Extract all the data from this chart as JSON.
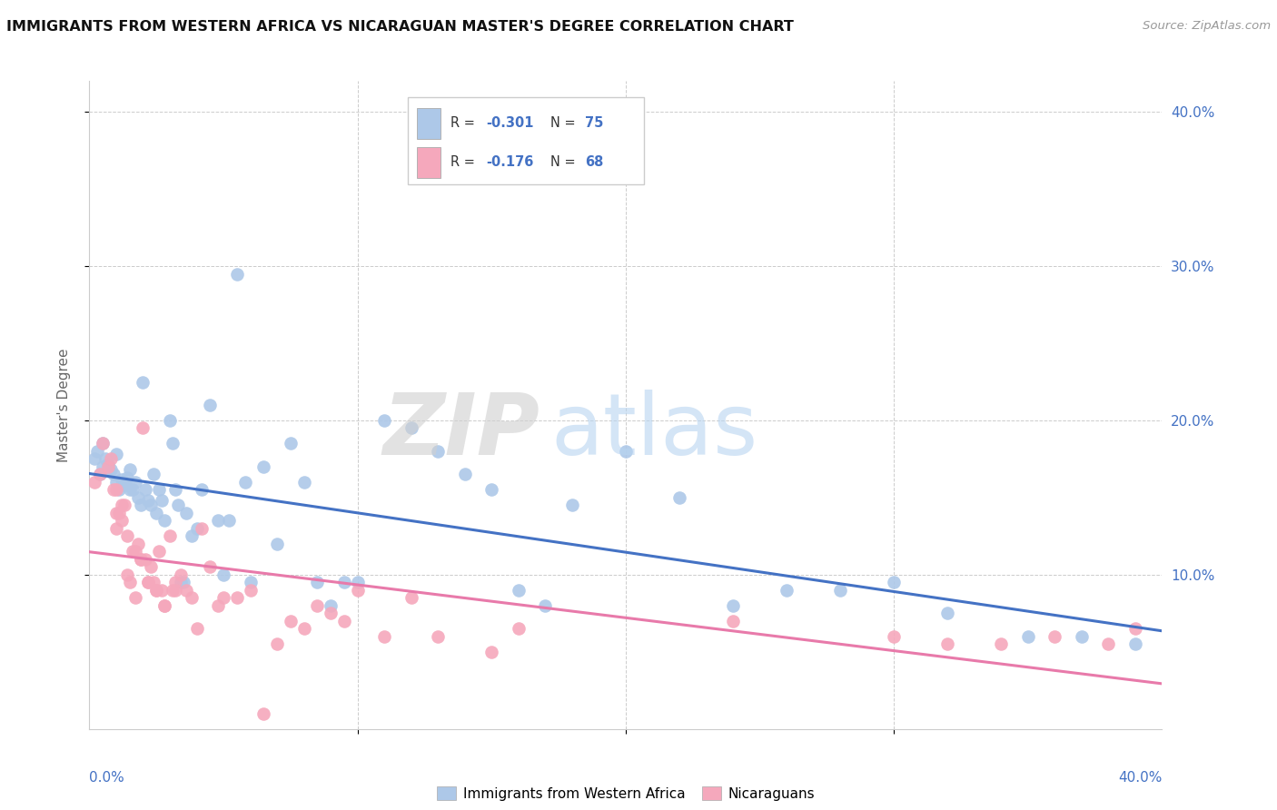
{
  "title": "IMMIGRANTS FROM WESTERN AFRICA VS NICARAGUAN MASTER'S DEGREE CORRELATION CHART",
  "source": "Source: ZipAtlas.com",
  "ylabel": "Master's Degree",
  "legend_label1": "Immigrants from Western Africa",
  "legend_label2": "Nicaraguans",
  "color_blue": "#adc8e8",
  "color_pink": "#f5a8bc",
  "line_color_blue": "#4472C4",
  "line_color_pink": "#e87aaa",
  "xlim": [
    0.0,
    0.4
  ],
  "ylim": [
    0.0,
    0.42
  ],
  "ytick_vals": [
    0.1,
    0.2,
    0.3,
    0.4
  ],
  "xtick_vals": [
    0.1,
    0.2,
    0.3
  ],
  "blue_x": [
    0.002,
    0.003,
    0.004,
    0.005,
    0.005,
    0.006,
    0.007,
    0.008,
    0.009,
    0.01,
    0.01,
    0.011,
    0.012,
    0.013,
    0.014,
    0.015,
    0.015,
    0.016,
    0.017,
    0.018,
    0.019,
    0.02,
    0.021,
    0.022,
    0.023,
    0.024,
    0.025,
    0.026,
    0.027,
    0.028,
    0.03,
    0.031,
    0.032,
    0.033,
    0.034,
    0.035,
    0.036,
    0.038,
    0.04,
    0.042,
    0.045,
    0.048,
    0.05,
    0.052,
    0.055,
    0.058,
    0.06,
    0.065,
    0.07,
    0.075,
    0.08,
    0.085,
    0.09,
    0.095,
    0.1,
    0.11,
    0.12,
    0.13,
    0.14,
    0.15,
    0.16,
    0.17,
    0.18,
    0.2,
    0.22,
    0.24,
    0.26,
    0.28,
    0.3,
    0.32,
    0.35,
    0.37,
    0.39
  ],
  "blue_y": [
    0.175,
    0.18,
    0.165,
    0.185,
    0.17,
    0.175,
    0.172,
    0.168,
    0.165,
    0.16,
    0.178,
    0.155,
    0.162,
    0.158,
    0.163,
    0.155,
    0.168,
    0.155,
    0.16,
    0.15,
    0.145,
    0.225,
    0.155,
    0.148,
    0.145,
    0.165,
    0.14,
    0.155,
    0.148,
    0.135,
    0.2,
    0.185,
    0.155,
    0.145,
    0.095,
    0.095,
    0.14,
    0.125,
    0.13,
    0.155,
    0.21,
    0.135,
    0.1,
    0.135,
    0.295,
    0.16,
    0.095,
    0.17,
    0.12,
    0.185,
    0.16,
    0.095,
    0.08,
    0.095,
    0.095,
    0.2,
    0.195,
    0.18,
    0.165,
    0.155,
    0.09,
    0.08,
    0.145,
    0.18,
    0.15,
    0.08,
    0.09,
    0.09,
    0.095,
    0.075,
    0.06,
    0.06,
    0.055
  ],
  "pink_x": [
    0.002,
    0.004,
    0.005,
    0.007,
    0.008,
    0.009,
    0.01,
    0.011,
    0.012,
    0.013,
    0.014,
    0.015,
    0.016,
    0.017,
    0.018,
    0.019,
    0.02,
    0.021,
    0.022,
    0.023,
    0.024,
    0.025,
    0.026,
    0.027,
    0.028,
    0.03,
    0.031,
    0.032,
    0.034,
    0.036,
    0.038,
    0.04,
    0.042,
    0.045,
    0.048,
    0.05,
    0.055,
    0.06,
    0.065,
    0.07,
    0.075,
    0.08,
    0.085,
    0.09,
    0.095,
    0.1,
    0.11,
    0.12,
    0.13,
    0.15,
    0.16,
    0.24,
    0.3,
    0.32,
    0.34,
    0.36,
    0.38,
    0.39,
    0.01,
    0.01,
    0.012,
    0.014,
    0.017,
    0.019,
    0.022,
    0.025,
    0.028,
    0.032
  ],
  "pink_y": [
    0.16,
    0.165,
    0.185,
    0.17,
    0.175,
    0.155,
    0.13,
    0.14,
    0.145,
    0.145,
    0.1,
    0.095,
    0.115,
    0.085,
    0.12,
    0.11,
    0.195,
    0.11,
    0.095,
    0.105,
    0.095,
    0.09,
    0.115,
    0.09,
    0.08,
    0.125,
    0.09,
    0.095,
    0.1,
    0.09,
    0.085,
    0.065,
    0.13,
    0.105,
    0.08,
    0.085,
    0.085,
    0.09,
    0.01,
    0.055,
    0.07,
    0.065,
    0.08,
    0.075,
    0.07,
    0.09,
    0.06,
    0.085,
    0.06,
    0.05,
    0.065,
    0.07,
    0.06,
    0.055,
    0.055,
    0.06,
    0.055,
    0.065,
    0.155,
    0.14,
    0.135,
    0.125,
    0.115,
    0.11,
    0.095,
    0.09,
    0.08,
    0.09
  ]
}
